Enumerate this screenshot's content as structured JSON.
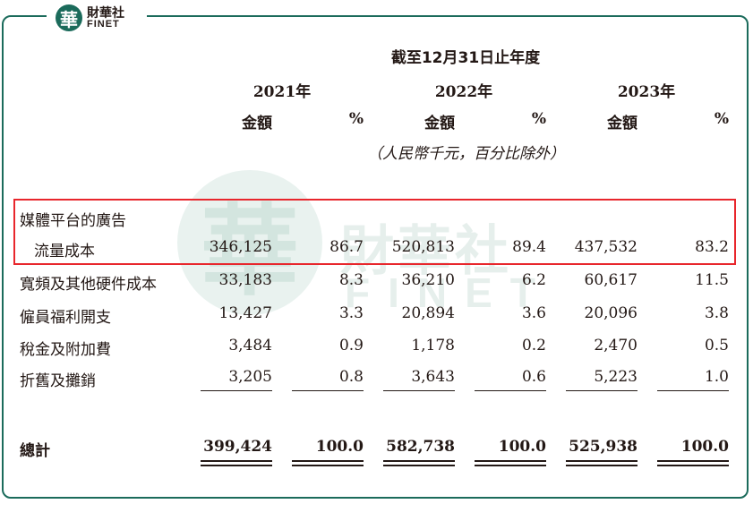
{
  "brand": {
    "logo_char": "華",
    "name_cn": "財華社",
    "name_en": "FINET"
  },
  "watermark": {
    "char": "華",
    "cn": "財華社",
    "en": "FINET"
  },
  "table": {
    "period_header": "截至12月31日止年度",
    "years": [
      "2021年",
      "2022年",
      "2023年"
    ],
    "amount_label": "金額",
    "pct_label": "%",
    "unit_note": "（人民幣千元，百分比除外）",
    "section_label": "媒體平台的廣告",
    "rows": [
      {
        "label": "流量成本",
        "v": [
          "346,125",
          "86.7",
          "520,813",
          "89.4",
          "437,532",
          "83.2"
        ]
      },
      {
        "label": "寬頻及其他硬件成本",
        "v": [
          "33,183",
          "8.3",
          "36,210",
          "6.2",
          "60,617",
          "11.5"
        ]
      },
      {
        "label": "僱員福利開支",
        "v": [
          "13,427",
          "3.3",
          "20,894",
          "3.6",
          "20,096",
          "3.8"
        ]
      },
      {
        "label": "稅金及附加費",
        "v": [
          "3,484",
          "0.9",
          "1,178",
          "0.2",
          "2,470",
          "0.5"
        ]
      },
      {
        "label": "折舊及攤銷",
        "v": [
          "3,205",
          "0.8",
          "3,643",
          "0.6",
          "5,223",
          "1.0"
        ]
      }
    ],
    "total": {
      "label": "總計",
      "v": [
        "399,424",
        "100.0",
        "582,738",
        "100.0",
        "525,938",
        "100.0"
      ]
    }
  }
}
